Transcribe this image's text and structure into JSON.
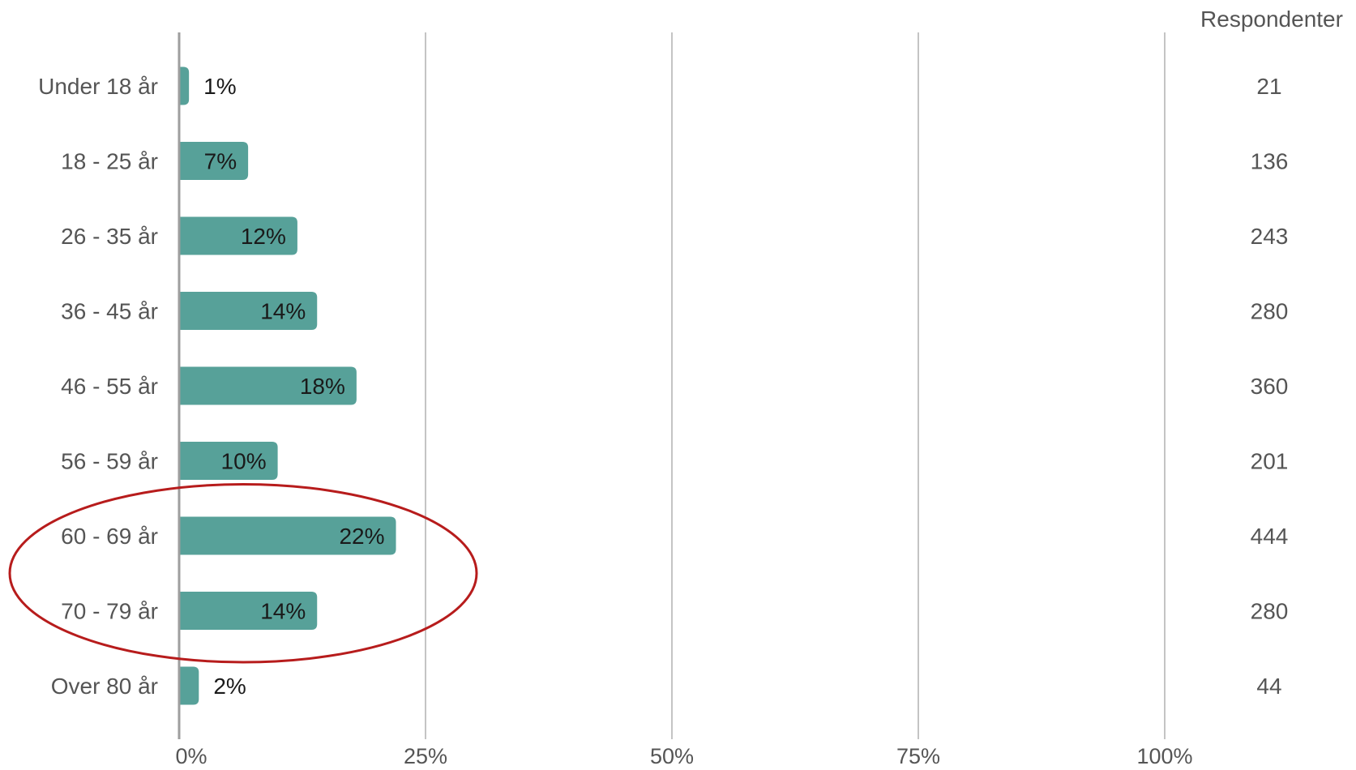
{
  "chart_data": {
    "type": "bar",
    "orientation": "horizontal",
    "categories": [
      "Under 18 år",
      "18 - 25 år",
      "26 - 35 år",
      "36 - 45 år",
      "46 - 55 år",
      "56 - 59 år",
      "60 - 69 år",
      "70 - 79 år",
      "Over 80 år"
    ],
    "values": [
      1,
      7,
      12,
      14,
      18,
      10,
      22,
      14,
      2
    ],
    "value_labels": [
      "1%",
      "7%",
      "12%",
      "14%",
      "18%",
      "10%",
      "22%",
      "14%",
      "2%"
    ],
    "respondents_header": "Respondenter",
    "respondents": [
      21,
      136,
      243,
      280,
      360,
      201,
      444,
      280,
      44
    ],
    "xlim": [
      0,
      100
    ],
    "x_ticks": [
      0,
      25,
      50,
      75,
      100
    ],
    "x_tick_labels": [
      "0%",
      "25%",
      "50%",
      "75%",
      "100%"
    ],
    "grid": true,
    "highlight_categories": [
      "60 - 69 år",
      "70 - 79 år"
    ],
    "colors": {
      "bar": "#57a199",
      "grid": "#c4c4c4",
      "axis": "#9e9e9e",
      "highlight": "#b71c1c"
    }
  }
}
